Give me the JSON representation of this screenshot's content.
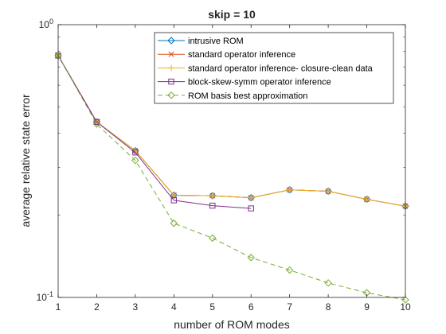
{
  "chart_data": {
    "type": "line",
    "title": "skip = 10",
    "xlabel": "number of ROM modes",
    "ylabel": "average relative state error",
    "xlim": [
      1,
      10
    ],
    "ylim": [
      0.1,
      1
    ],
    "yscale": "log",
    "grid": false,
    "legend_position": "top-right",
    "x_ticks": [
      1,
      2,
      3,
      4,
      5,
      6,
      7,
      8,
      9,
      10
    ],
    "y_tick_labels": [
      {
        "value": 1,
        "base": "10",
        "exp": "0"
      },
      {
        "value": 0.1,
        "base": "10",
        "exp": "-1"
      }
    ],
    "series": [
      {
        "name": "intrusive ROM",
        "color": "#0072bd",
        "marker": "diamond",
        "dash": "solid",
        "x": [
          1,
          2,
          3,
          4,
          5,
          6,
          7,
          8,
          9,
          10
        ],
        "y": [
          0.77,
          0.44,
          0.345,
          0.237,
          0.236,
          0.232,
          0.248,
          0.245,
          0.229,
          0.216
        ]
      },
      {
        "name": "standard operator inference",
        "color": "#d95319",
        "marker": "x",
        "dash": "solid",
        "x": [
          1,
          2,
          3,
          4,
          5,
          6,
          7,
          8,
          9,
          10
        ],
        "y": [
          0.77,
          0.44,
          0.345,
          0.237,
          0.236,
          0.232,
          0.248,
          0.245,
          0.229,
          0.216
        ]
      },
      {
        "name": "standard operator inference- closure-clean data",
        "color": "#edb120",
        "marker": "plus",
        "dash": "solid",
        "x": [
          1,
          2,
          3,
          4,
          5,
          6,
          7,
          8,
          9,
          10
        ],
        "y": [
          0.77,
          0.44,
          0.345,
          0.237,
          0.236,
          0.232,
          0.248,
          0.245,
          0.229,
          0.216
        ]
      },
      {
        "name": "block-skew-symm operator inference",
        "color": "#7e2f8e",
        "marker": "square",
        "dash": "solid",
        "x": [
          1,
          2,
          3,
          4,
          5,
          6
        ],
        "y": [
          0.77,
          0.44,
          0.34,
          0.227,
          0.217,
          0.212
        ]
      },
      {
        "name": "ROM basis best approximation",
        "color": "#77ac30",
        "marker": "diamond",
        "dash": "dashed",
        "x": [
          1,
          2,
          3,
          4,
          5,
          6,
          7,
          8,
          9,
          10
        ],
        "y": [
          0.77,
          0.432,
          0.318,
          0.187,
          0.165,
          0.14,
          0.126,
          0.113,
          0.104,
          0.098
        ]
      }
    ]
  }
}
